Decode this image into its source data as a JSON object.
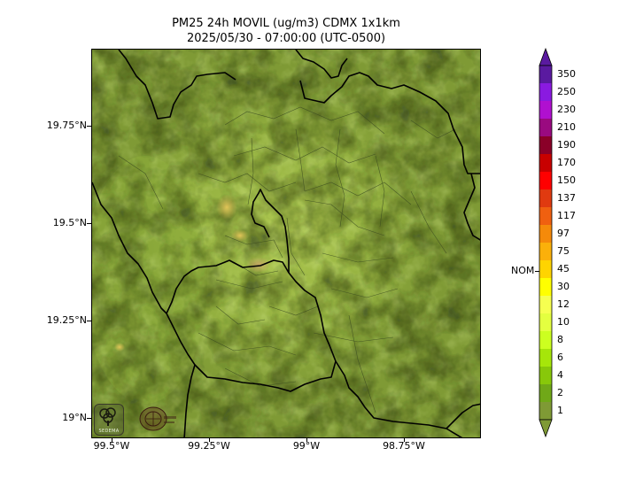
{
  "title_line1": "PM25 24h MOVIL (ug/m3) CDMX 1x1km",
  "title_line2": "2025/05/30 - 07:00:00 (UTC-0500)",
  "y_ticks": [
    "19.75°N",
    "19.5°N",
    "19.25°N",
    "19°N"
  ],
  "x_ticks": [
    "99.5°W",
    "99.25°W",
    "99°W",
    "98.75°W"
  ],
  "colorbar": {
    "labels": [
      "350",
      "250",
      "230",
      "210",
      "190",
      "170",
      "150",
      "137",
      "117",
      "97",
      "75",
      "45",
      "30",
      "12",
      "10",
      "8",
      "6",
      "4",
      "2",
      "1"
    ],
    "colors": [
      "#5a1aa0",
      "#8a1ae0",
      "#b010d0",
      "#9a0a80",
      "#8a0028",
      "#c80000",
      "#ff0000",
      "#e03a10",
      "#f06010",
      "#f58a0a",
      "#fbb00a",
      "#ffd400",
      "#ffff00",
      "#f6ff50",
      "#e4ff40",
      "#ccff20",
      "#a6e60a",
      "#88c80a",
      "#70a818",
      "#7f9a35"
    ],
    "nom_label": "NOM",
    "nom_value": "45"
  },
  "logos": {
    "sedema_text": "SEDEMA"
  },
  "map_colors": {
    "base": "#7f9a35",
    "light": "#a8c64a",
    "hotspot": "#e0c060",
    "boundary": "#000000"
  }
}
